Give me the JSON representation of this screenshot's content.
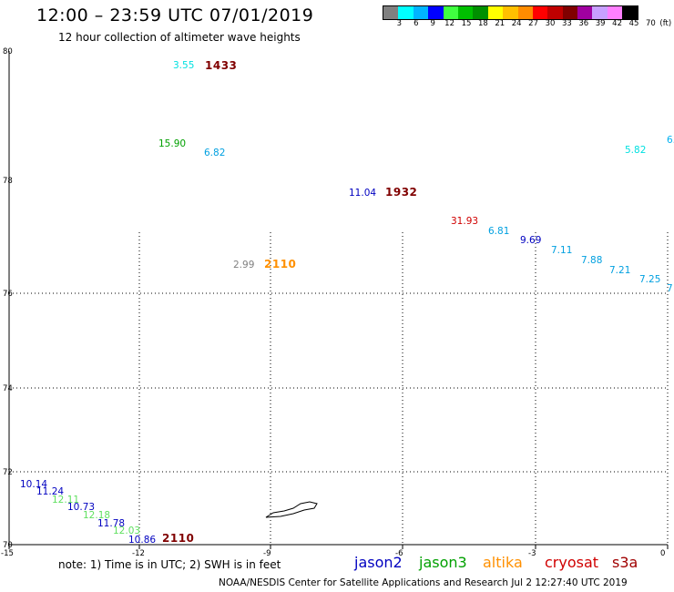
{
  "title": "12:00 – 23:59 UTC 07/01/2019",
  "subtitle": "12 hour collection of altimeter wave heights",
  "legend": {
    "colors": [
      "#808080",
      "#00ffff",
      "#00b4ff",
      "#0000ff",
      "#40ff40",
      "#00c000",
      "#009000",
      "#ffff00",
      "#ffc000",
      "#ff8c00",
      "#ff0000",
      "#c00000",
      "#800000",
      "#a000a0",
      "#c8a0ff",
      "#ff80ff",
      "#000000"
    ],
    "ticks": [
      "3",
      "6",
      "9",
      "12",
      "15",
      "18",
      "21",
      "24",
      "27",
      "30",
      "33",
      "36",
      "39",
      "42",
      "45",
      "70"
    ],
    "unit": "(ft)"
  },
  "axes": {
    "lat_labels": [
      "80",
      "78",
      "76",
      "74",
      "72",
      "70"
    ],
    "lon_labels": [
      "-15",
      "-12",
      "-9",
      "-6",
      "-3",
      "0"
    ]
  },
  "observations": [
    {
      "text": "3.55",
      "color": "#00e0e0"
    },
    {
      "text": "15.90",
      "color": "#00a000"
    },
    {
      "text": "6.82",
      "color": "#00a0e0"
    },
    {
      "text": "5.82",
      "color": "#00e0e0"
    },
    {
      "text": "6.",
      "color": "#00b0f0"
    },
    {
      "text": "11.04",
      "color": "#0000c0"
    },
    {
      "text": "31.93",
      "color": "#d00000"
    },
    {
      "text": "6.81",
      "color": "#00a0e0"
    },
    {
      "text": "9.69",
      "color": "#0000c0"
    },
    {
      "text": "7.11",
      "color": "#00a0e0"
    },
    {
      "text": "7.88",
      "color": "#00a0e0"
    },
    {
      "text": "7.21",
      "color": "#00a0e0"
    },
    {
      "text": "7.25",
      "color": "#00a0e0"
    },
    {
      "text": "7",
      "color": "#00a0e0"
    },
    {
      "text": "2.99",
      "color": "#808080"
    },
    {
      "text": "10.14",
      "color": "#0000c0"
    },
    {
      "text": "11.24",
      "color": "#0000c0"
    },
    {
      "text": "12.11",
      "color": "#60e060"
    },
    {
      "text": "10.73",
      "color": "#0000c0"
    },
    {
      "text": "12.18",
      "color": "#60e060"
    },
    {
      "text": "11.78",
      "color": "#0000c0"
    },
    {
      "text": "12.03",
      "color": "#60e060"
    },
    {
      "text": "10.86",
      "color": "#0000c0"
    }
  ],
  "times": [
    {
      "text": "1433",
      "color": "#800000"
    },
    {
      "text": "1932",
      "color": "#800000"
    },
    {
      "text": "2110",
      "color": "#ff9000"
    },
    {
      "text": "2110",
      "color": "#800000"
    }
  ],
  "note": "note: 1) Time is in UTC; 2) SWH is in feet",
  "satellites": [
    {
      "name": "jason2",
      "color": "#0000c0"
    },
    {
      "name": "jason3",
      "color": "#00a000"
    },
    {
      "name": "altika",
      "color": "#ff9000"
    },
    {
      "name": "cryosat",
      "color": "#d00000"
    },
    {
      "name": "s3a",
      "color": "#a00000"
    }
  ],
  "credit": "NOAA/NESDIS Center for Satellite Applications and Research   Jul  2 12:27:40 UTC 2019"
}
